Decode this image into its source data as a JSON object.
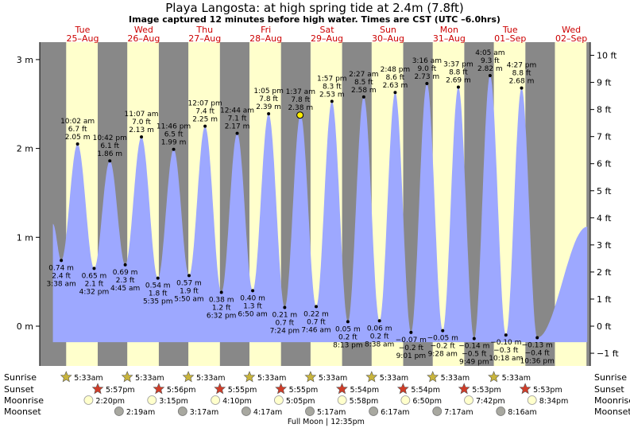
{
  "chart_data": {
    "type": "area",
    "title": "Playa Langosta: at high  spring tide at 2.4m (7.8ft)",
    "subtitle": "Image captured 12 minutes before high water. Times are CST (UTC –6.0hrs)",
    "ylabel_left_unit": "m",
    "ylabel_right_unit": "ft",
    "ylim_m": [
      -0.45,
      3.1
    ],
    "left_ticks": [
      "0 m",
      "1 m",
      "2 m",
      "3 m"
    ],
    "right_ticks": [
      "−1 ft",
      "0 ft",
      "1 ft",
      "2 ft",
      "3 ft",
      "4 ft",
      "5 ft",
      "6 ft",
      "7 ft",
      "8 ft",
      "9 ft",
      "10 ft"
    ],
    "days": [
      {
        "dow": "Tue",
        "date": "25–Aug"
      },
      {
        "dow": "Wed",
        "date": "26–Aug"
      },
      {
        "dow": "Thu",
        "date": "27–Aug"
      },
      {
        "dow": "Fri",
        "date": "28–Aug"
      },
      {
        "dow": "Sat",
        "date": "29–Aug"
      },
      {
        "dow": "Sun",
        "date": "30–Aug"
      },
      {
        "dow": "Mon",
        "date": "31–Aug"
      },
      {
        "dow": "Tue",
        "date": "01–Sep"
      },
      {
        "dow": "Wed",
        "date": "02–Sep"
      }
    ],
    "extremes": [
      {
        "type": "low",
        "day": 0,
        "time": "3:38 am",
        "hours": 3.63,
        "m": 0.74,
        "mlabel": "0.74 m",
        "ft": "2.4 ft"
      },
      {
        "type": "high",
        "day": 0,
        "time": "10:02 am",
        "hours": 10.03,
        "m": 2.05,
        "mlabel": "2.05 m",
        "ft": "6.7 ft"
      },
      {
        "type": "low",
        "day": 0,
        "time": "4:32 pm",
        "hours": 16.53,
        "m": 0.65,
        "mlabel": "0.65 m",
        "ft": "2.1 ft"
      },
      {
        "type": "high",
        "day": 0,
        "time": "10:42 pm",
        "hours": 22.7,
        "m": 1.86,
        "mlabel": "1.86 m",
        "ft": "6.1 ft"
      },
      {
        "type": "low",
        "day": 1,
        "time": "4:45 am",
        "hours": 28.75,
        "m": 0.69,
        "mlabel": "0.69 m",
        "ft": "2.3 ft"
      },
      {
        "type": "high",
        "day": 1,
        "time": "11:07 am",
        "hours": 35.12,
        "m": 2.13,
        "mlabel": "2.13 m",
        "ft": "7.0 ft"
      },
      {
        "type": "low",
        "day": 1,
        "time": "5:35 pm",
        "hours": 41.58,
        "m": 0.54,
        "mlabel": "0.54 m",
        "ft": "1.8 ft"
      },
      {
        "type": "high",
        "day": 1,
        "time": "11:46 pm",
        "hours": 47.77,
        "m": 1.99,
        "mlabel": "1.99 m",
        "ft": "6.5 ft"
      },
      {
        "type": "low",
        "day": 2,
        "time": "5:50 am",
        "hours": 53.83,
        "m": 0.57,
        "mlabel": "0.57 m",
        "ft": "1.9 ft"
      },
      {
        "type": "high",
        "day": 2,
        "time": "12:07 pm",
        "hours": 60.12,
        "m": 2.25,
        "mlabel": "2.25 m",
        "ft": "7.4 ft"
      },
      {
        "type": "low",
        "day": 2,
        "time": "6:32 pm",
        "hours": 66.53,
        "m": 0.38,
        "mlabel": "0.38 m",
        "ft": "1.2 ft"
      },
      {
        "type": "high",
        "day": 3,
        "time": "12:44 am",
        "hours": 72.73,
        "m": 2.17,
        "mlabel": "2.17 m",
        "ft": "7.1 ft"
      },
      {
        "type": "low",
        "day": 3,
        "time": "6:50 am",
        "hours": 78.83,
        "m": 0.4,
        "mlabel": "0.40 m",
        "ft": "1.3 ft"
      },
      {
        "type": "high",
        "day": 3,
        "time": "1:05 pm",
        "hours": 85.08,
        "m": 2.39,
        "mlabel": "2.39 m",
        "ft": "7.8 ft"
      },
      {
        "type": "low",
        "day": 3,
        "time": "7:24 pm",
        "hours": 91.4,
        "m": 0.21,
        "mlabel": "0.21 m",
        "ft": "0.7 ft"
      },
      {
        "type": "high",
        "day": 4,
        "time": "1:37 am",
        "hours": 97.62,
        "m": 2.38,
        "mlabel": "2.38 m",
        "ft": "7.8 ft"
      },
      {
        "type": "low",
        "day": 4,
        "time": "7:46 am",
        "hours": 103.77,
        "m": 0.22,
        "mlabel": "0.22 m",
        "ft": "0.7 ft"
      },
      {
        "type": "high",
        "day": 4,
        "time": "1:57 pm",
        "hours": 109.95,
        "m": 2.53,
        "mlabel": "2.53 m",
        "ft": "8.3 ft"
      },
      {
        "type": "low",
        "day": 4,
        "time": "8:13 pm",
        "hours": 116.22,
        "m": 0.05,
        "mlabel": "0.05 m",
        "ft": "0.2 ft"
      },
      {
        "type": "high",
        "day": 5,
        "time": "2:27 am",
        "hours": 122.45,
        "m": 2.58,
        "mlabel": "2.58 m",
        "ft": "8.5 ft"
      },
      {
        "type": "low",
        "day": 5,
        "time": "8:38 am",
        "hours": 128.63,
        "m": 0.06,
        "mlabel": "0.06 m",
        "ft": "0.2 ft"
      },
      {
        "type": "high",
        "day": 5,
        "time": "2:48 pm",
        "hours": 134.8,
        "m": 2.63,
        "mlabel": "2.63 m",
        "ft": "8.6 ft"
      },
      {
        "type": "low",
        "day": 5,
        "time": "9:01 pm",
        "hours": 141.02,
        "m": -0.07,
        "mlabel": "−0.07 m",
        "ft": "−0.2 ft"
      },
      {
        "type": "high",
        "day": 6,
        "time": "3:16 am",
        "hours": 147.27,
        "m": 2.73,
        "mlabel": "2.73 m",
        "ft": "9.0 ft"
      },
      {
        "type": "low",
        "day": 6,
        "time": "9:28 am",
        "hours": 153.47,
        "m": -0.05,
        "mlabel": "−0.05 m",
        "ft": "−0.2 ft"
      },
      {
        "type": "high",
        "day": 6,
        "time": "3:37 pm",
        "hours": 159.62,
        "m": 2.69,
        "mlabel": "2.69 m",
        "ft": "8.8 ft"
      },
      {
        "type": "low",
        "day": 6,
        "time": "9:49 pm",
        "hours": 165.82,
        "m": -0.14,
        "mlabel": "−0.14 m",
        "ft": "−0.5 ft"
      },
      {
        "type": "high",
        "day": 7,
        "time": "4:05 am",
        "hours": 172.08,
        "m": 2.82,
        "mlabel": "2.82 m",
        "ft": "9.3 ft"
      },
      {
        "type": "low",
        "day": 7,
        "time": "10:18 am",
        "hours": 178.3,
        "m": -0.1,
        "mlabel": "−0.10 m",
        "ft": "−0.3 ft"
      },
      {
        "type": "high",
        "day": 7,
        "time": "4:27 pm",
        "hours": 184.45,
        "m": 2.68,
        "mlabel": "2.68 m",
        "ft": "8.8 ft"
      },
      {
        "type": "low",
        "day": 7,
        "time": "10:36 pm",
        "hours": 190.6,
        "m": -0.13,
        "mlabel": "−0.13 m",
        "ft": "−0.4 ft"
      }
    ],
    "current_marker": {
      "hours": 97.42
    },
    "daylight": {
      "sunrise_hours": 5.55,
      "sunset_hours": 17.95
    },
    "row_labels": {
      "sunrise": "Sunrise",
      "sunset": "Sunset",
      "moonrise": "Moonrise",
      "moonset": "Moonset"
    },
    "sunrise": [
      {
        "hours": 5.55,
        "label": "5:33am"
      },
      {
        "hours": 29.55,
        "label": "5:33am"
      },
      {
        "hours": 53.55,
        "label": "5:33am"
      },
      {
        "hours": 77.55,
        "label": "5:33am"
      },
      {
        "hours": 101.55,
        "label": "5:33am"
      },
      {
        "hours": 125.55,
        "label": "5:33am"
      },
      {
        "hours": 149.55,
        "label": "5:33am"
      },
      {
        "hours": 173.55,
        "label": "5:33am"
      }
    ],
    "sunset": [
      {
        "hours": 17.95,
        "label": "5:57pm"
      },
      {
        "hours": 41.93,
        "label": "5:56pm"
      },
      {
        "hours": 65.92,
        "label": "5:55pm"
      },
      {
        "hours": 89.92,
        "label": "5:55pm"
      },
      {
        "hours": 113.9,
        "label": "5:54pm"
      },
      {
        "hours": 137.9,
        "label": "5:54pm"
      },
      {
        "hours": 161.88,
        "label": "5:53pm"
      },
      {
        "hours": 185.88,
        "label": "5:53pm"
      }
    ],
    "moonrise": [
      {
        "hours": 14.33,
        "label": "2:20pm"
      },
      {
        "hours": 39.25,
        "label": "3:15pm"
      },
      {
        "hours": 64.17,
        "label": "4:10pm"
      },
      {
        "hours": 89.08,
        "label": "5:05pm"
      },
      {
        "hours": 113.97,
        "label": "5:58pm"
      },
      {
        "hours": 138.83,
        "label": "6:50pm"
      },
      {
        "hours": 163.7,
        "label": "7:42pm"
      },
      {
        "hours": 188.57,
        "label": "8:34pm"
      }
    ],
    "moonset": [
      {
        "hours": 26.32,
        "label": "2:19am"
      },
      {
        "hours": 51.28,
        "label": "3:17am"
      },
      {
        "hours": 76.28,
        "label": "4:17am"
      },
      {
        "hours": 101.28,
        "label": "5:17am"
      },
      {
        "hours": 126.28,
        "label": "6:17am"
      },
      {
        "hours": 151.28,
        "label": "7:17am"
      },
      {
        "hours": 176.27,
        "label": "8:16am"
      }
    ],
    "moon_phase": {
      "label": "Full Moon | 12:35pm",
      "hours": 108.58
    }
  },
  "colors": {
    "night": "#888888",
    "day": "#ffffcc",
    "water": "#9da8ff",
    "day_text": "#cc0000",
    "sunrise_star": "#c8b43c",
    "sunset_star": "#d03c28",
    "moonrise": "#ffffcc",
    "moonset": "#a8a8a0",
    "marker": "#ffee00"
  }
}
